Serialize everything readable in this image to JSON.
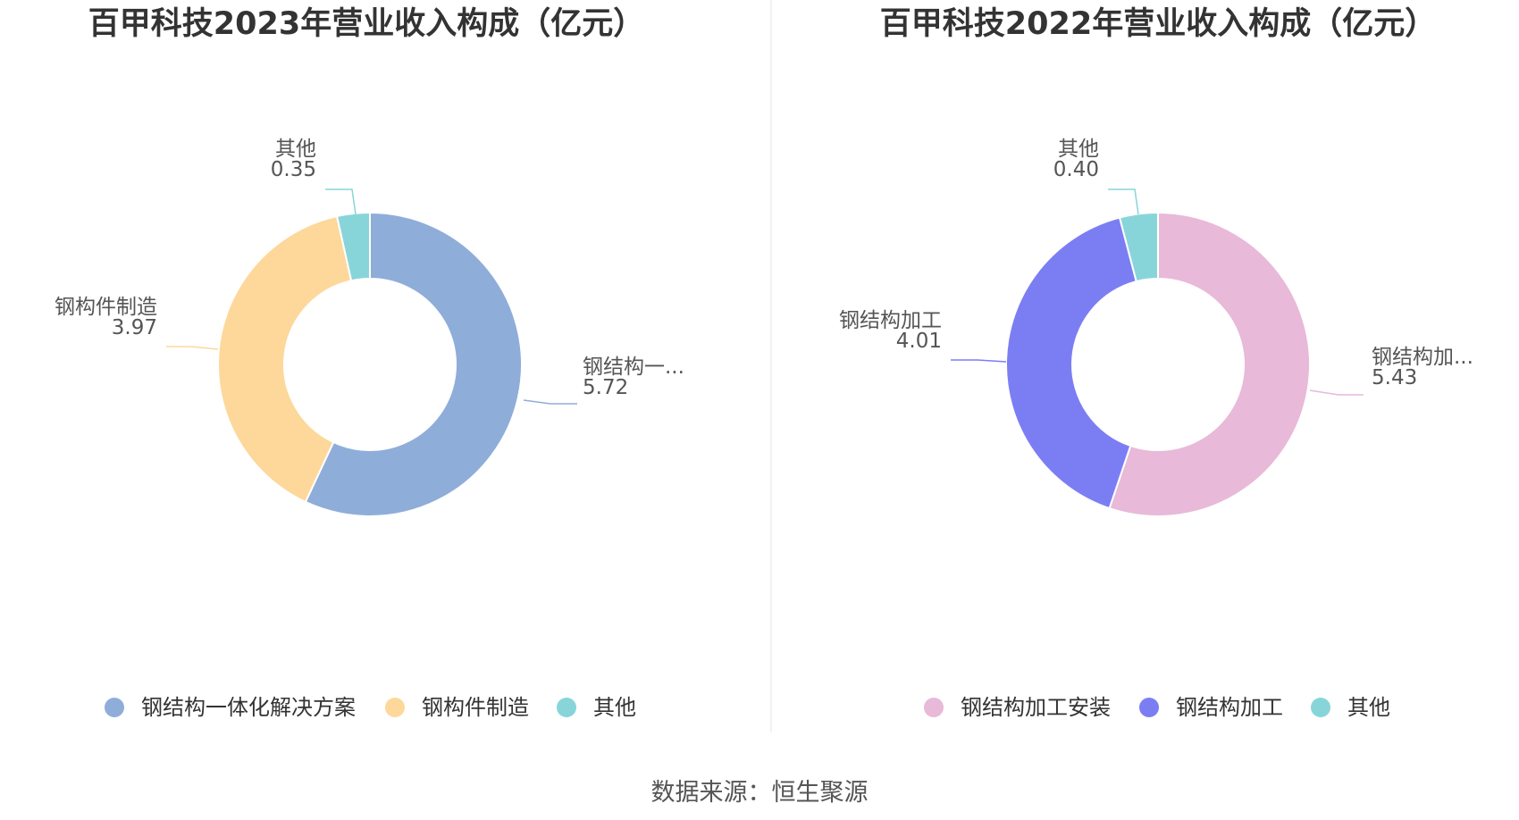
{
  "source": "数据来源：恒生聚源",
  "chart_data": [
    {
      "type": "pie",
      "variant": "donut",
      "title": "百甲科技2023年营业收入构成（亿元）",
      "categories": [
        "钢结构一体化解决方案",
        "钢构件制造",
        "其他"
      ],
      "values": [
        5.72,
        3.97,
        0.35
      ],
      "value_labels": [
        "5.72",
        "3.97",
        "0.35"
      ],
      "slice_labels": [
        "钢结构一...",
        "钢构件制造",
        "其他"
      ],
      "colors": [
        "#8fadd9",
        "#fdd89a",
        "#88d5d9"
      ],
      "legend_position": "bottom"
    },
    {
      "type": "pie",
      "variant": "donut",
      "title": "百甲科技2022年营业收入构成（亿元）",
      "categories": [
        "钢结构加工安装",
        "钢结构加工",
        "其他"
      ],
      "values": [
        5.43,
        4.01,
        0.4
      ],
      "value_labels": [
        "5.43",
        "4.01",
        "0.40"
      ],
      "slice_labels": [
        "钢结构加...",
        "钢结构加工",
        "其他"
      ],
      "colors": [
        "#e8b9d8",
        "#7b7ef3",
        "#88d5d9"
      ],
      "legend_position": "bottom"
    }
  ]
}
